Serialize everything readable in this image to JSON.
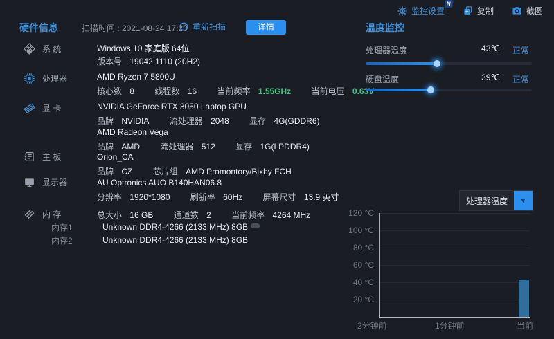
{
  "topbar": {
    "settings": "监控设置",
    "settings_badge": "N",
    "copy": "复制",
    "screenshot": "截图"
  },
  "header": {
    "title": "硬件信息",
    "scan_time": "扫描时间 : 2021-08-24 17:23",
    "rescan": "重新扫描",
    "details_button": "详情"
  },
  "sidebar": {
    "items": [
      {
        "label": "系 统",
        "icon": "windows-icon"
      },
      {
        "label": "处理器",
        "icon": "cpu-icon"
      },
      {
        "label": "显 卡",
        "icon": "gpu-icon"
      },
      {
        "label": "主 板",
        "icon": "motherboard-icon"
      },
      {
        "label": "显示器",
        "icon": "monitor-icon"
      },
      {
        "label": "内 存",
        "icon": "ram-icon",
        "sub": [
          "内存1",
          "内存2"
        ]
      }
    ]
  },
  "system": {
    "name": "Windows 10 家庭版 64位",
    "version_label": "版本号",
    "version": "19042.1110 (20H2)"
  },
  "cpu": {
    "name": "AMD Ryzen 7 5800U",
    "cores_label": "核心数",
    "cores": "8",
    "threads_label": "线程数",
    "threads": "16",
    "freq_label": "当前频率",
    "freq": "1.55GHz",
    "volt_label": "当前电压",
    "volt": "0.63V",
    "accent_color": "#41c682"
  },
  "gpus": [
    {
      "name": "NVIDIA GeForce RTX 3050 Laptop GPU",
      "brand_label": "品牌",
      "brand": "NVIDIA",
      "sp_label": "流处理器",
      "sp": "2048",
      "vram_label": "显存",
      "vram": "4G(GDDR6)"
    },
    {
      "name": "AMD Radeon Vega",
      "brand_label": "品牌",
      "brand": "AMD",
      "sp_label": "流处理器",
      "sp": "512",
      "vram_label": "显存",
      "vram": "1G(LPDDR4)"
    }
  ],
  "motherboard": {
    "name": "Orion_CA",
    "brand_label": "品牌",
    "brand": "CZ",
    "chipset_label": "芯片组",
    "chipset": "AMD Promontory/Bixby FCH"
  },
  "display": {
    "name": "AU Optronics AUO B140HAN06.8",
    "res_label": "分辨率",
    "res": "1920*1080",
    "refresh_label": "刷新率",
    "refresh": "60Hz",
    "size_label": "屏幕尺寸",
    "size": "13.9 英寸"
  },
  "memory": {
    "total_label": "总大小",
    "total": "16 GB",
    "channels_label": "通道数",
    "channels": "2",
    "freq_label": "当前频率",
    "freq": "4264 MHz",
    "sticks": [
      {
        "name": "Unknown DDR4-4266 (2133 MHz) 8GB",
        "badge": "…"
      },
      {
        "name": "Unknown DDR4-4266 (2133 MHz) 8GB",
        "badge": ""
      }
    ]
  },
  "temperature": {
    "title": "温度监控",
    "normal_color": "#3d8fd9",
    "rows": [
      {
        "label": "处理器温度",
        "value": "43℃",
        "status": "正常",
        "percent": 43
      },
      {
        "label": "硬盘温度",
        "value": "39℃",
        "status": "正常",
        "percent": 39
      }
    ]
  },
  "chart_selector": {
    "value": "处理器温度"
  },
  "chart_data": {
    "type": "bar",
    "title": "处理器温度",
    "categories": [
      "2分钟前",
      "1分钟前",
      "当前"
    ],
    "values": [
      null,
      null,
      43
    ],
    "ylabel": "°C",
    "ylim": [
      0,
      120
    ],
    "yticks": [
      "120 °C",
      "100 °C",
      "80 °C",
      "60 °C",
      "40 °C",
      "20 °C"
    ],
    "grid": true,
    "bar_color": "#2e6f9e"
  }
}
